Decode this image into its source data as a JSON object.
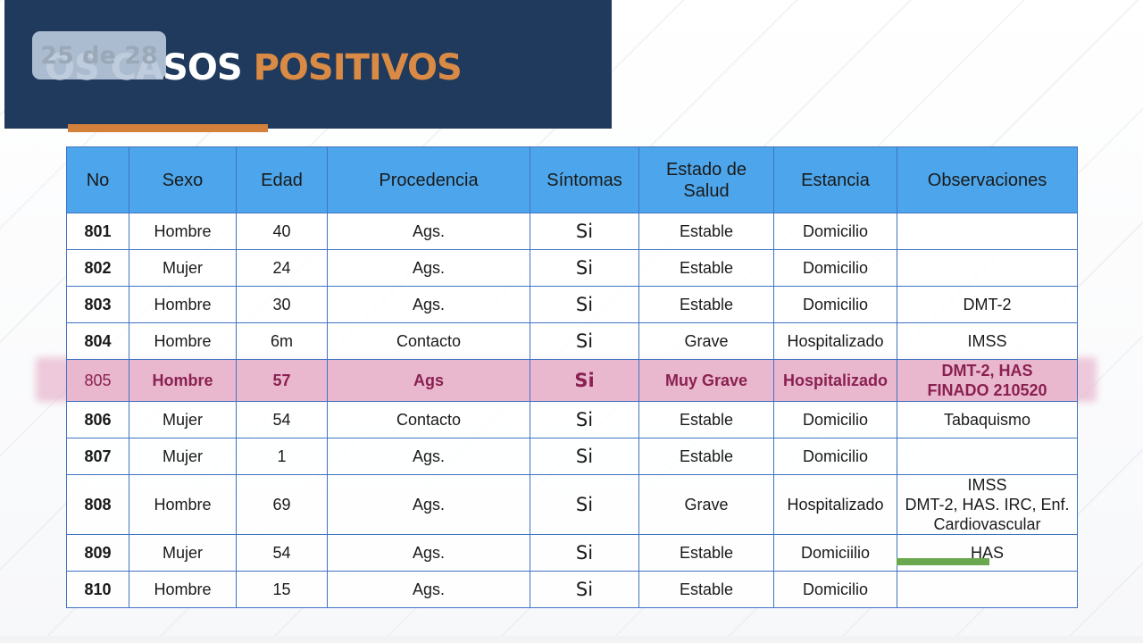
{
  "page_indicator": "25 de 28",
  "title": {
    "prefix": "OS CASOS",
    "accent": "POSITIVOS"
  },
  "columns": [
    "No",
    "Sexo",
    "Edad",
    "Procedencia",
    "Síntomas",
    "Estado de Salud",
    "Estancia",
    "Observaciones"
  ],
  "rows": [
    {
      "no": "801",
      "sexo": "Hombre",
      "edad": "40",
      "procedencia": "Ags.",
      "sintomas": "Si",
      "estado": "Estable",
      "estancia": "Domicilio",
      "obs": []
    },
    {
      "no": "802",
      "sexo": "Mujer",
      "edad": "24",
      "procedencia": "Ags.",
      "sintomas": "Si",
      "estado": "Estable",
      "estancia": "Domicilio",
      "obs": []
    },
    {
      "no": "803",
      "sexo": "Hombre",
      "edad": "30",
      "procedencia": "Ags.",
      "sintomas": "Si",
      "estado": "Estable",
      "estancia": "Domicilio",
      "obs": [
        "DMT-2"
      ]
    },
    {
      "no": "804",
      "sexo": "Hombre",
      "edad": "6m",
      "procedencia": "Contacto",
      "sintomas": "Si",
      "estado": "Grave",
      "estancia": "Hospitalizado",
      "obs": [
        "IMSS"
      ]
    },
    {
      "no": "805",
      "sexo": "Hombre",
      "edad": "57",
      "procedencia": "Ags",
      "sintomas": "Si",
      "estado": "Muy Grave",
      "estancia": "Hospitalizado",
      "obs": [
        "DMT-2, HAS",
        "FINADO 210520"
      ],
      "highlight": true
    },
    {
      "no": "806",
      "sexo": "Mujer",
      "edad": "54",
      "procedencia": "Contacto",
      "sintomas": "Si",
      "estado": "Estable",
      "estancia": "Domicilio",
      "obs": [
        "Tabaquismo"
      ]
    },
    {
      "no": "807",
      "sexo": "Mujer",
      "edad": "1",
      "procedencia": "Ags.",
      "sintomas": "Si",
      "estado": "Estable",
      "estancia": "Domicilio",
      "obs": []
    },
    {
      "no": "808",
      "sexo": "Hombre",
      "edad": "69",
      "procedencia": "Ags.",
      "sintomas": "Si",
      "estado": "Grave",
      "estancia": "Hospitalizado",
      "obs": [
        "IMSS",
        "DMT-2, HAS. IRC, Enf.",
        "Cardiovascular"
      ],
      "tall": true
    },
    {
      "no": "809",
      "sexo": "Mujer",
      "edad": "54",
      "procedencia": "Ags.",
      "sintomas": "Si",
      "estado": "Estable",
      "estancia": "Domiciilio",
      "obs": [
        "HAS"
      ]
    },
    {
      "no": "810",
      "sexo": "Hombre",
      "edad": "15",
      "procedencia": "Ags.",
      "sintomas": "Si",
      "estado": "Estable",
      "estancia": "Domicilio",
      "obs": []
    }
  ],
  "colors": {
    "header_band": "#1f3a5c",
    "title_accent": "#d98a45",
    "table_header": "#4da6eb",
    "table_border": "#3f73c2",
    "highlight_row": "#e9b8cf",
    "highlight_text": "#8a2050",
    "green_mark": "#6aa84f"
  }
}
